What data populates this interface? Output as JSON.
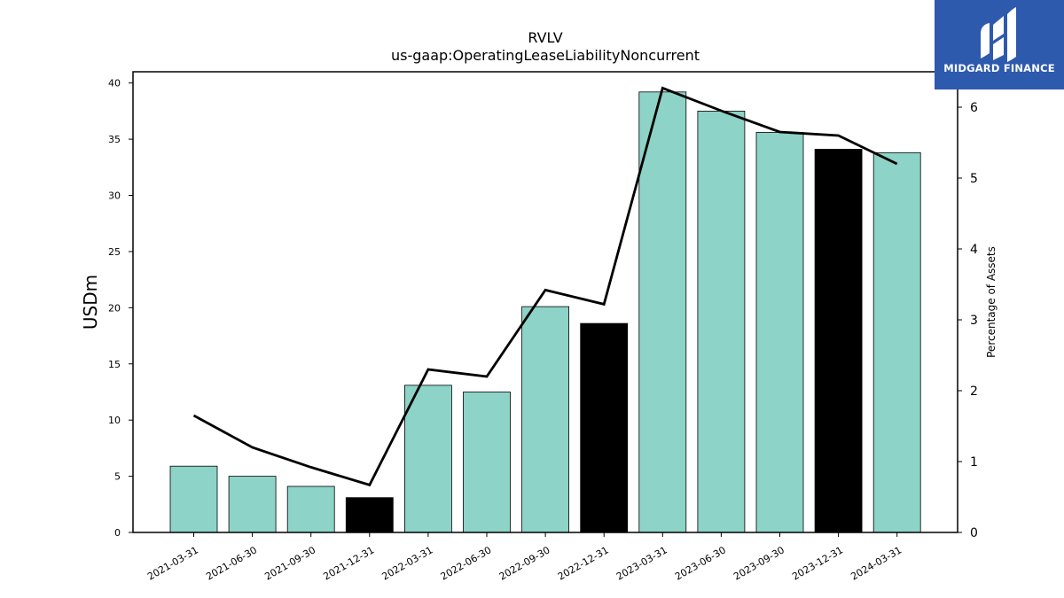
{
  "chart_data": {
    "type": "bar",
    "title": "RVLV",
    "subtitle": "us-gaap:OperatingLeaseLiabilityNoncurrent",
    "ylabel": "USDm",
    "y2label": "Percentage of Assets",
    "categories": [
      "2021-03-31",
      "2021-06-30",
      "2021-09-30",
      "2021-12-31",
      "2022-03-31",
      "2022-06-30",
      "2022-09-30",
      "2022-12-31",
      "2023-03-31",
      "2023-06-30",
      "2023-09-30",
      "2023-12-31",
      "2024-03-31"
    ],
    "values": [
      5.9,
      5.0,
      4.1,
      3.1,
      13.1,
      12.5,
      20.1,
      18.6,
      39.2,
      37.5,
      35.6,
      34.1,
      33.8
    ],
    "highlighted": [
      false,
      false,
      false,
      true,
      false,
      false,
      false,
      true,
      false,
      false,
      false,
      true,
      false
    ],
    "line_values": [
      1.65,
      1.2,
      0.92,
      0.67,
      2.3,
      2.2,
      3.42,
      3.22,
      6.27,
      5.95,
      5.65,
      5.6,
      5.2
    ],
    "ylim": [
      0,
      41
    ],
    "y2lim": [
      0,
      6.5
    ],
    "yticks": [
      0,
      5,
      10,
      15,
      20,
      25,
      30,
      35,
      40
    ],
    "y2ticks": [
      0,
      1,
      2,
      3,
      4,
      5,
      6
    ],
    "colors": {
      "bar": "#8dd3c7",
      "highlight": "#000000",
      "line": "#000000"
    },
    "grid": false
  },
  "logo": {
    "text": "MIDGARD FINANCE",
    "background": "#2d5aad",
    "icon": "midgard-logo-icon"
  }
}
